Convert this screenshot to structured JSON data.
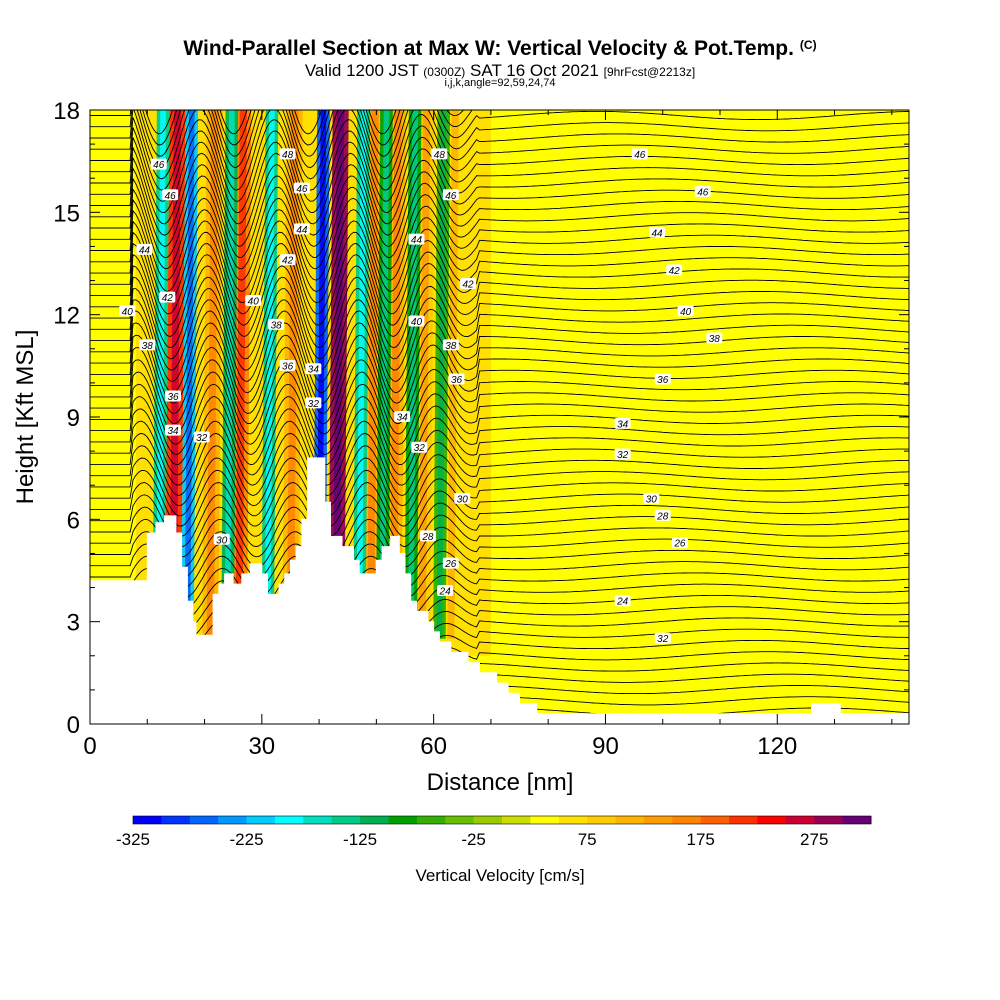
{
  "title": {
    "main": "Wind-Parallel Section at Max W: Vertical Velocity & Pot.Temp.",
    "copyright": "(C)",
    "valid_prefix": "Valid 1200 JST",
    "valid_utc": "(0300Z)",
    "valid_date": "SAT 16 Oct 2021",
    "forecast": "[9hrFcst@2213z]",
    "indices": "i,j,k,angle=92,59,24,74"
  },
  "chart_data": {
    "type": "heatmap",
    "xlabel": "Distance [nm]",
    "ylabel": "Height [Kft MSL]",
    "xlim": [
      0,
      143
    ],
    "ylim": [
      0,
      18
    ],
    "x_ticks": [
      0,
      30,
      60,
      90,
      120
    ],
    "y_ticks": [
      0,
      3,
      6,
      9,
      12,
      15,
      18
    ],
    "colorbar": {
      "label": "Vertical Velocity [cm/s]",
      "min": -325,
      "max": 300,
      "step": 25,
      "tick_values": [
        -325,
        -225,
        -125,
        -25,
        75,
        175,
        275
      ],
      "colors": [
        "#0000ff",
        "#0033ff",
        "#0066ff",
        "#0099ff",
        "#00ccff",
        "#00ffff",
        "#00e0c0",
        "#00cc88",
        "#00b050",
        "#00a000",
        "#33b000",
        "#66c000",
        "#99cc00",
        "#ccdd00",
        "#ffff00",
        "#ffe000",
        "#ffcc00",
        "#ffb400",
        "#ff9c00",
        "#ff8400",
        "#ff6000",
        "#ff3000",
        "#ff0000",
        "#cc0033",
        "#990055",
        "#660077"
      ]
    },
    "updrafts": [
      {
        "x": 14.5,
        "w": 220
      },
      {
        "x": 21,
        "w": 120
      },
      {
        "x": 26,
        "w": 150
      },
      {
        "x": 35,
        "w": 120
      },
      {
        "x": 43,
        "w": 275
      },
      {
        "x": 49,
        "w": 120
      },
      {
        "x": 53,
        "w": 100
      },
      {
        "x": 58,
        "w": 90
      },
      {
        "x": 63,
        "w": 70
      }
    ],
    "downdrafts": [
      {
        "x": 12,
        "w": -150
      },
      {
        "x": 17,
        "w": -225
      },
      {
        "x": 24,
        "w": -125
      },
      {
        "x": 31,
        "w": -150
      },
      {
        "x": 40,
        "w": -275
      },
      {
        "x": 47,
        "w": -150
      },
      {
        "x": 51,
        "w": -100
      },
      {
        "x": 56,
        "w": -90
      },
      {
        "x": 61,
        "w": -70
      }
    ],
    "terrain": [
      [
        0,
        4.2
      ],
      [
        10,
        4.2
      ],
      [
        10,
        5.6
      ],
      [
        11.5,
        5.6
      ],
      [
        11.5,
        5.9
      ],
      [
        13,
        5.9
      ],
      [
        13,
        6.1
      ],
      [
        15,
        6.1
      ],
      [
        15,
        5.6
      ],
      [
        16,
        5.6
      ],
      [
        16,
        4.6
      ],
      [
        17,
        4.6
      ],
      [
        17,
        3.6
      ],
      [
        18,
        3.6
      ],
      [
        18,
        3.0
      ],
      [
        18.5,
        3.0
      ],
      [
        18.5,
        2.6
      ],
      [
        21.5,
        2.6
      ],
      [
        21.5,
        3.8
      ],
      [
        22.5,
        3.8
      ],
      [
        22.5,
        4.1
      ],
      [
        23.5,
        4.1
      ],
      [
        23.5,
        4.4
      ],
      [
        25,
        4.4
      ],
      [
        25,
        4.1
      ],
      [
        26.5,
        4.1
      ],
      [
        26.5,
        4.4
      ],
      [
        28,
        4.4
      ],
      [
        28,
        4.7
      ],
      [
        30,
        4.7
      ],
      [
        30,
        4.4
      ],
      [
        31,
        4.4
      ],
      [
        31,
        3.8
      ],
      [
        32,
        3.8
      ],
      [
        32,
        3.8
      ],
      [
        33,
        3.8
      ],
      [
        33,
        4.1
      ],
      [
        34,
        4.1
      ],
      [
        34,
        4.4
      ],
      [
        35,
        4.4
      ],
      [
        35,
        4.8
      ],
      [
        36,
        4.8
      ],
      [
        36,
        5.2
      ],
      [
        37,
        5.2
      ],
      [
        37,
        6.0
      ],
      [
        38,
        6.0
      ],
      [
        38,
        7.8
      ],
      [
        41,
        7.8
      ],
      [
        41,
        6.5
      ],
      [
        42,
        6.5
      ],
      [
        42,
        5.5
      ],
      [
        44,
        5.5
      ],
      [
        44,
        5.2
      ],
      [
        46,
        5.2
      ],
      [
        46,
        4.8
      ],
      [
        47,
        4.8
      ],
      [
        47,
        4.4
      ],
      [
        49,
        4.4
      ],
      [
        49,
        4.4
      ],
      [
        50,
        4.4
      ],
      [
        50,
        4.8
      ],
      [
        51,
        4.8
      ],
      [
        51,
        5.2
      ],
      [
        52.5,
        5.2
      ],
      [
        52.5,
        5.5
      ],
      [
        54,
        5.5
      ],
      [
        54,
        5.0
      ],
      [
        55,
        5.0
      ],
      [
        55,
        4.4
      ],
      [
        56,
        4.4
      ],
      [
        56,
        3.6
      ],
      [
        57,
        3.6
      ],
      [
        57,
        3.3
      ],
      [
        59,
        3.3
      ],
      [
        59,
        3.0
      ],
      [
        60,
        3.0
      ],
      [
        60,
        2.7
      ],
      [
        61,
        2.7
      ],
      [
        61,
        2.4
      ],
      [
        63,
        2.4
      ],
      [
        63,
        2.1
      ],
      [
        66,
        2.1
      ],
      [
        66,
        1.8
      ],
      [
        68,
        1.8
      ],
      [
        68,
        1.5
      ],
      [
        71,
        1.5
      ],
      [
        71,
        1.2
      ],
      [
        73,
        1.2
      ],
      [
        73,
        0.9
      ],
      [
        75,
        0.9
      ],
      [
        75,
        0.6
      ],
      [
        78,
        0.6
      ],
      [
        78,
        0.3
      ],
      [
        81,
        0.3
      ],
      [
        81,
        0.3
      ],
      [
        126,
        0.3
      ],
      [
        126,
        0.6
      ],
      [
        131,
        0.6
      ],
      [
        131,
        0.3
      ],
      [
        143,
        0.3
      ]
    ],
    "contours": [
      {
        "label": "46",
        "pos": [
          [
            12,
            16.4
          ],
          [
            14,
            15.5
          ],
          [
            96,
            16.7
          ],
          [
            107,
            15.6
          ]
        ]
      },
      {
        "label": "48",
        "pos": [
          [
            34.5,
            16.7
          ],
          [
            61,
            16.7
          ]
        ]
      },
      {
        "label": "46",
        "pos": [
          [
            37,
            15.7
          ],
          [
            63,
            15.5
          ]
        ]
      },
      {
        "label": "44",
        "pos": [
          [
            9.5,
            13.9
          ],
          [
            37,
            14.5
          ],
          [
            57,
            14.2
          ],
          [
            99,
            14.4
          ]
        ]
      },
      {
        "label": "42",
        "pos": [
          [
            34.5,
            13.6
          ],
          [
            13.5,
            12.5
          ],
          [
            66,
            12.9
          ],
          [
            102,
            13.3
          ]
        ]
      },
      {
        "label": "40",
        "pos": [
          [
            6.5,
            12.1
          ],
          [
            28.5,
            12.4
          ],
          [
            57,
            11.8
          ],
          [
            104,
            12.1
          ]
        ]
      },
      {
        "label": "38",
        "pos": [
          [
            10,
            11.1
          ],
          [
            32.5,
            11.7
          ],
          [
            63,
            11.1
          ],
          [
            109,
            11.3
          ]
        ]
      },
      {
        "label": "36",
        "pos": [
          [
            14.5,
            9.6
          ],
          [
            34.5,
            10.5
          ],
          [
            64,
            10.1
          ],
          [
            100,
            10.1
          ]
        ]
      },
      {
        "label": "34",
        "pos": [
          [
            39,
            10.4
          ],
          [
            14.5,
            8.6
          ],
          [
            54.5,
            9.0
          ],
          [
            93,
            8.8
          ]
        ]
      },
      {
        "label": "32",
        "pos": [
          [
            39,
            9.4
          ],
          [
            19.5,
            8.4
          ],
          [
            57.5,
            8.1
          ],
          [
            93,
            7.9
          ]
        ]
      },
      {
        "label": "30",
        "pos": [
          [
            65,
            6.6
          ],
          [
            23,
            5.4
          ],
          [
            98,
            6.6
          ]
        ]
      },
      {
        "label": "28",
        "pos": [
          [
            59,
            5.5
          ],
          [
            100,
            6.1
          ]
        ]
      },
      {
        "label": "26",
        "pos": [
          [
            63,
            4.7
          ],
          [
            103,
            5.3
          ]
        ]
      },
      {
        "label": "24",
        "pos": [
          [
            62,
            3.9
          ],
          [
            93,
            3.6
          ]
        ]
      },
      {
        "label": "32",
        "pos": [
          [
            100,
            2.5
          ]
        ]
      }
    ]
  }
}
